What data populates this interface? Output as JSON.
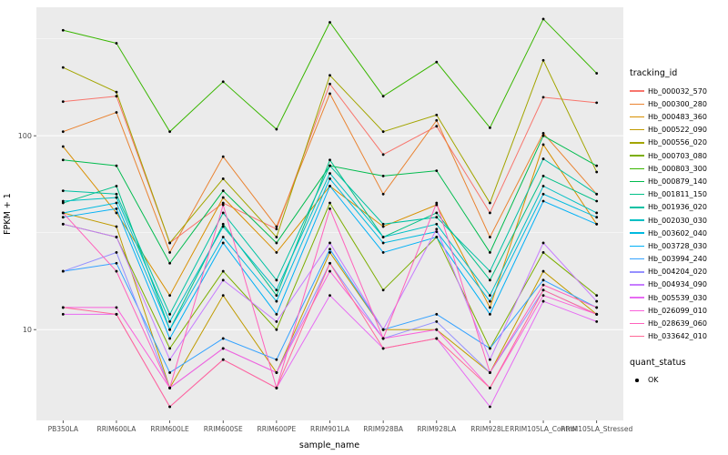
{
  "legend": {
    "tracking_title": "tracking_id",
    "quant_title": "quant_status",
    "quant_items": [
      {
        "label": "OK"
      }
    ]
  },
  "chart_data": {
    "type": "line",
    "title": "",
    "xlabel": "sample_name",
    "ylabel": "FPKM + 1",
    "y_scale": "log10",
    "y_ticks": [
      100,
      10
    ],
    "y_minor_ticks": [
      31.6,
      316
    ],
    "ylim": [
      3.4,
      460
    ],
    "grid": true,
    "legend_position": "right",
    "panel_background": "#EBEBEB",
    "gridline_color": "#FFFFFF",
    "point_color": "#000000",
    "categories": [
      "PB350LA",
      "RRIM600LA",
      "RRIM600LE",
      "RRIM600SE",
      "RRIM600PE",
      "RRIM901LA",
      "RRIM928BA",
      "RRIM928LA",
      "RRIM928LE",
      "RRIM105LA_Control",
      "RRIM105LA_Stressed"
    ],
    "series": [
      {
        "name": "Hb_000032_570",
        "color": "#F8766D",
        "values": [
          150,
          160,
          28,
          45,
          33,
          185,
          80,
          112,
          40,
          158,
          148
        ]
      },
      {
        "name": "Hb_000300_280",
        "color": "#EA8331",
        "values": [
          105,
          132,
          25,
          78,
          34,
          165,
          50,
          120,
          30,
          103,
          50
        ]
      },
      {
        "name": "Hb_000483_360",
        "color": "#D89000",
        "values": [
          88,
          40,
          15,
          48,
          25,
          55,
          34,
          44,
          13,
          90,
          35
        ]
      },
      {
        "name": "Hb_000522_090",
        "color": "#C09B00",
        "values": [
          40,
          34,
          5,
          15,
          6,
          25,
          10,
          10,
          6,
          20,
          12
        ]
      },
      {
        "name": "Hb_000556_020",
        "color": "#A3A500",
        "values": [
          225,
          168,
          28,
          60,
          30,
          205,
          105,
          128,
          45,
          245,
          65
        ]
      },
      {
        "name": "Hb_000703_080",
        "color": "#7CAE00",
        "values": [
          35,
          30,
          8,
          20,
          10,
          45,
          16,
          30,
          8,
          25,
          15
        ]
      },
      {
        "name": "Hb_000803_300",
        "color": "#39B600",
        "values": [
          350,
          300,
          105,
          190,
          108,
          385,
          160,
          240,
          110,
          400,
          210
        ]
      },
      {
        "name": "Hb_000879_140",
        "color": "#00BB4E",
        "values": [
          75,
          70,
          22,
          52,
          28,
          70,
          62,
          66,
          25,
          100,
          70
        ]
      },
      {
        "name": "Hb_001811_150",
        "color": "#00C087",
        "values": [
          45,
          55,
          10,
          35,
          15,
          75,
          30,
          40,
          18,
          62,
          46
        ]
      },
      {
        "name": "Hb_001936_020",
        "color": "#00C1A3",
        "values": [
          52,
          50,
          12,
          40,
          18,
          70,
          35,
          38,
          20,
          76,
          50
        ]
      },
      {
        "name": "Hb_002030_030",
        "color": "#00BFC4",
        "values": [
          46,
          48,
          11,
          34,
          16,
          64,
          30,
          35,
          15,
          55,
          40
        ]
      },
      {
        "name": "Hb_003602_040",
        "color": "#00BAE0",
        "values": [
          40,
          45,
          10,
          30,
          14,
          60,
          28,
          32,
          14,
          50,
          38
        ]
      },
      {
        "name": "Hb_003728_030",
        "color": "#00B0F6",
        "values": [
          38,
          42,
          9,
          28,
          12,
          55,
          25,
          30,
          12,
          46,
          35
        ]
      },
      {
        "name": "Hb_003994_240",
        "color": "#35A2FF",
        "values": [
          20,
          22,
          6,
          9,
          7,
          26,
          10,
          12,
          8,
          18,
          13
        ]
      },
      {
        "name": "Hb_004204_020",
        "color": "#9590FF",
        "values": [
          20,
          25,
          5,
          8,
          6,
          22,
          9,
          11,
          6,
          16,
          12
        ]
      },
      {
        "name": "Hb_004934_090",
        "color": "#C77CFF",
        "values": [
          35,
          30,
          7,
          18,
          11,
          28,
          10,
          33,
          7,
          28,
          14
        ]
      },
      {
        "name": "Hb_005539_030",
        "color": "#E76BF3",
        "values": [
          12,
          12,
          4,
          7,
          5,
          15,
          8,
          9,
          4,
          14,
          11
        ]
      },
      {
        "name": "Hb_026099_010",
        "color": "#FA62DB",
        "values": [
          13,
          13,
          5,
          8,
          6,
          20,
          9,
          10,
          5,
          15,
          12
        ]
      },
      {
        "name": "Hb_028639_060",
        "color": "#FF62BC",
        "values": [
          40,
          20,
          5,
          44,
          5,
          42,
          9,
          45,
          6,
          17,
          13
        ]
      },
      {
        "name": "Hb_033642_010",
        "color": "#FF6A98",
        "values": [
          13,
          12,
          4,
          7,
          5,
          22,
          8,
          9,
          5,
          16,
          12
        ]
      }
    ]
  }
}
